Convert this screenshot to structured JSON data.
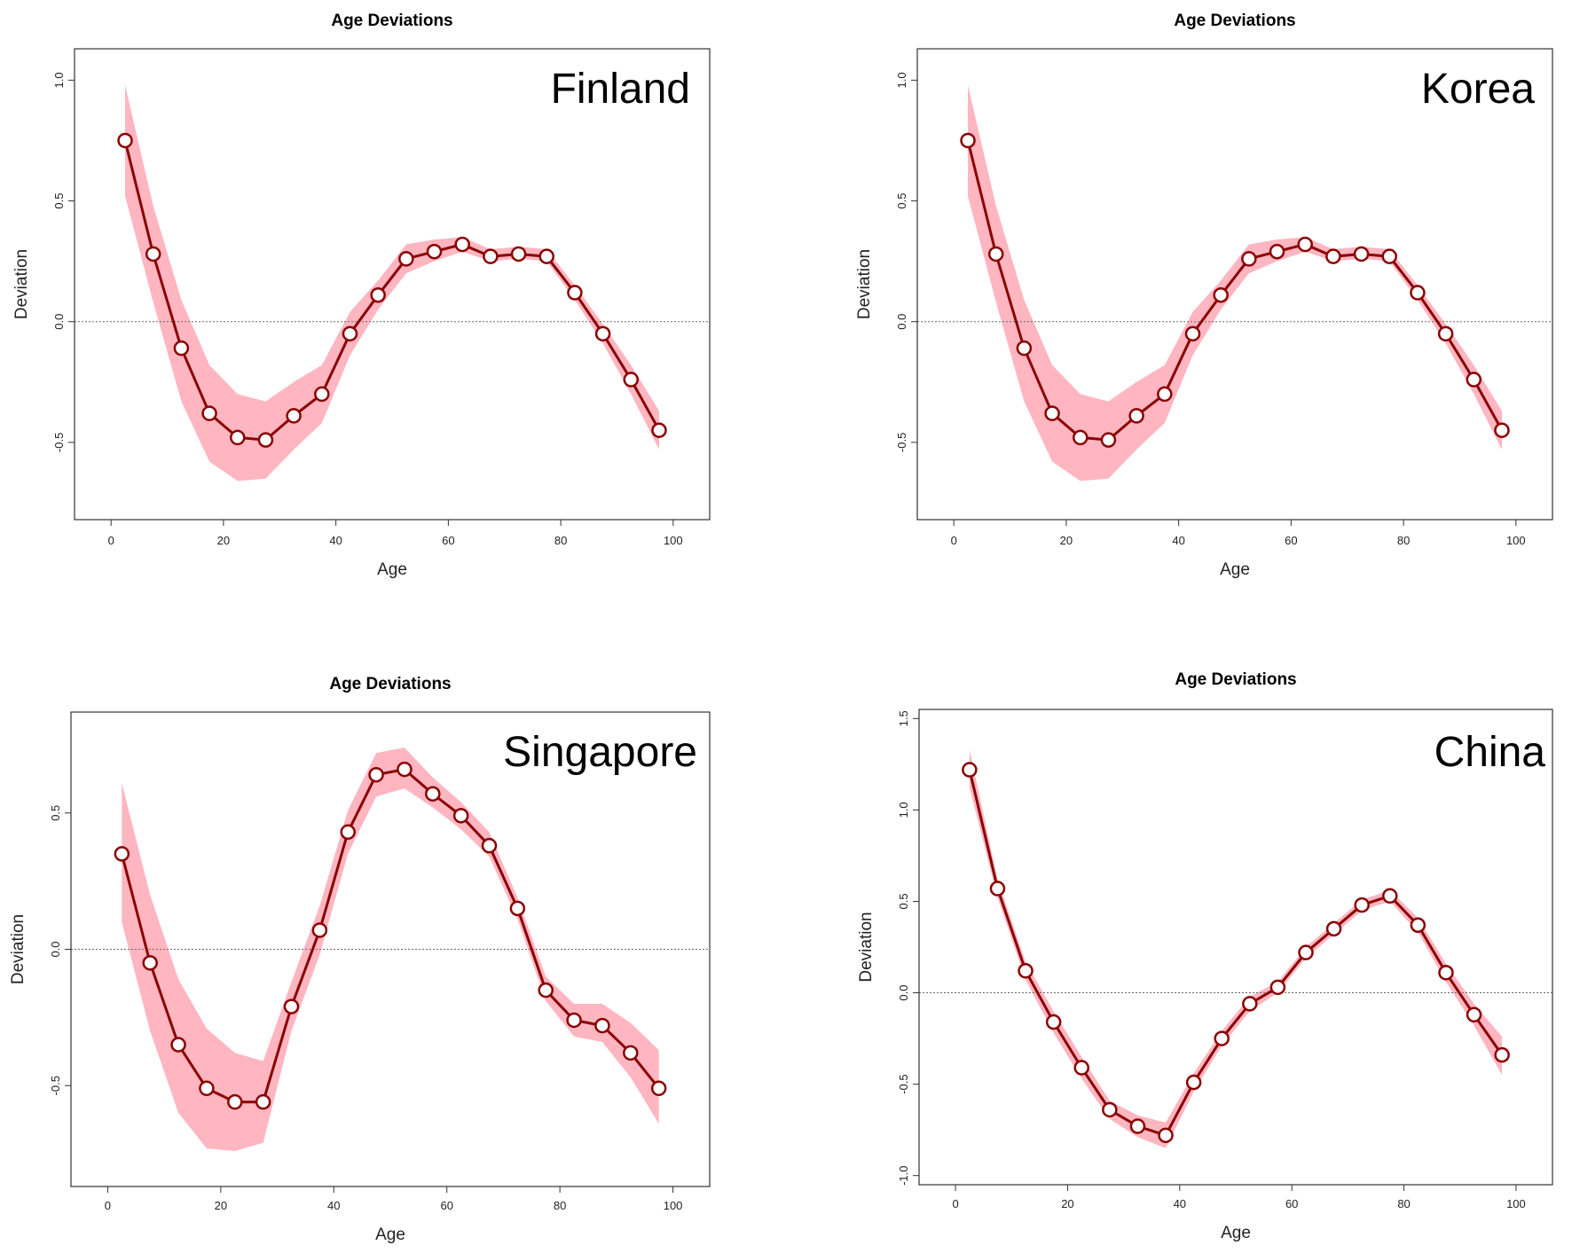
{
  "chart_data": [
    {
      "type": "line",
      "title": "Age Deviations",
      "annotation": "Finland",
      "xlabel": "Age",
      "ylabel": "Deviation",
      "xlim": [
        -6.5,
        106.5
      ],
      "ylim": [
        -0.82,
        1.13
      ],
      "xticks": [
        0,
        20,
        40,
        60,
        80,
        100
      ],
      "yticks": [
        -0.5,
        0.0,
        0.5,
        1.0
      ],
      "ytick_labels": [
        "-0.5",
        "0.0",
        "0.5",
        "1.0"
      ],
      "reference_line": 0,
      "x": [
        2.5,
        7.5,
        12.5,
        17.5,
        22.5,
        27.5,
        32.5,
        37.5,
        42.5,
        47.5,
        52.5,
        57.5,
        62.5,
        67.5,
        72.5,
        77.5,
        82.5,
        87.5,
        92.5,
        97.5
      ],
      "series": [
        {
          "values": [
            0.75,
            0.28,
            -0.11,
            -0.38,
            -0.48,
            -0.49,
            -0.39,
            -0.3,
            -0.05,
            0.11,
            0.26,
            0.29,
            0.32,
            0.27,
            0.28,
            0.27,
            0.12,
            -0.05,
            -0.24,
            -0.45
          ],
          "lower": [
            0.52,
            0.08,
            -0.33,
            -0.58,
            -0.66,
            -0.65,
            -0.53,
            -0.42,
            -0.14,
            0.05,
            0.2,
            0.25,
            0.29,
            0.25,
            0.26,
            0.25,
            0.09,
            -0.09,
            -0.3,
            -0.53
          ],
          "upper": [
            0.98,
            0.48,
            0.09,
            -0.18,
            -0.3,
            -0.33,
            -0.25,
            -0.18,
            0.04,
            0.17,
            0.32,
            0.34,
            0.35,
            0.3,
            0.31,
            0.3,
            0.15,
            -0.01,
            -0.18,
            -0.37
          ]
        }
      ],
      "colors": {
        "line": "#8b0000",
        "band": "#ffb6c1",
        "marker_fill": "#ffffff"
      }
    },
    {
      "type": "line",
      "title": "Age Deviations",
      "annotation": "Korea",
      "xlabel": "Age",
      "ylabel": "Deviation",
      "xlim": [
        -6.5,
        106.5
      ],
      "ylim": [
        -0.82,
        1.13
      ],
      "xticks": [
        0,
        20,
        40,
        60,
        80,
        100
      ],
      "yticks": [
        -0.5,
        0.0,
        0.5,
        1.0
      ],
      "ytick_labels": [
        "-0.5",
        "0.0",
        "0.5",
        "1.0"
      ],
      "reference_line": 0,
      "x": [
        2.5,
        7.5,
        12.5,
        17.5,
        22.5,
        27.5,
        32.5,
        37.5,
        42.5,
        47.5,
        52.5,
        57.5,
        62.5,
        67.5,
        72.5,
        77.5,
        82.5,
        87.5,
        92.5,
        97.5
      ],
      "series": [
        {
          "values": [
            0.75,
            0.28,
            -0.11,
            -0.38,
            -0.48,
            -0.49,
            -0.39,
            -0.3,
            -0.05,
            0.11,
            0.26,
            0.29,
            0.32,
            0.27,
            0.28,
            0.27,
            0.12,
            -0.05,
            -0.24,
            -0.45
          ],
          "lower": [
            0.52,
            0.08,
            -0.33,
            -0.58,
            -0.66,
            -0.65,
            -0.53,
            -0.42,
            -0.14,
            0.05,
            0.2,
            0.25,
            0.29,
            0.25,
            0.26,
            0.25,
            0.09,
            -0.09,
            -0.3,
            -0.53
          ],
          "upper": [
            0.98,
            0.48,
            0.09,
            -0.18,
            -0.3,
            -0.33,
            -0.25,
            -0.18,
            0.04,
            0.17,
            0.32,
            0.34,
            0.35,
            0.3,
            0.31,
            0.3,
            0.15,
            -0.01,
            -0.18,
            -0.37
          ]
        }
      ],
      "colors": {
        "line": "#8b0000",
        "band": "#ffb6c1",
        "marker_fill": "#ffffff"
      }
    },
    {
      "type": "line",
      "title": "Age Deviations",
      "annotation": "Singapore",
      "xlabel": "Age",
      "ylabel": "Deviation",
      "xlim": [
        -6.5,
        106.5
      ],
      "ylim": [
        -0.87,
        0.87
      ],
      "xticks": [
        0,
        20,
        40,
        60,
        80,
        100
      ],
      "yticks": [
        -0.5,
        0.0,
        0.5
      ],
      "ytick_labels": [
        "-0.5",
        "0.0",
        "0.5"
      ],
      "reference_line": 0,
      "x": [
        2.5,
        7.5,
        12.5,
        17.5,
        22.5,
        27.5,
        32.5,
        37.5,
        42.5,
        47.5,
        52.5,
        57.5,
        62.5,
        67.5,
        72.5,
        77.5,
        82.5,
        87.5,
        92.5,
        97.5
      ],
      "series": [
        {
          "values": [
            0.35,
            -0.05,
            -0.35,
            -0.51,
            -0.56,
            -0.56,
            -0.21,
            0.07,
            0.43,
            0.64,
            0.66,
            0.57,
            0.49,
            0.38,
            0.15,
            -0.15,
            -0.26,
            -0.28,
            -0.38,
            -0.51
          ],
          "lower": [
            0.1,
            -0.3,
            -0.6,
            -0.73,
            -0.74,
            -0.71,
            -0.3,
            -0.02,
            0.35,
            0.56,
            0.59,
            0.52,
            0.44,
            0.34,
            0.11,
            -0.19,
            -0.32,
            -0.34,
            -0.47,
            -0.64
          ],
          "upper": [
            0.61,
            0.2,
            -0.11,
            -0.29,
            -0.38,
            -0.41,
            -0.12,
            0.16,
            0.51,
            0.72,
            0.74,
            0.63,
            0.54,
            0.43,
            0.19,
            -0.1,
            -0.2,
            -0.2,
            -0.27,
            -0.37
          ]
        }
      ],
      "colors": {
        "line": "#8b0000",
        "band": "#ffb6c1",
        "marker_fill": "#ffffff"
      }
    },
    {
      "type": "line",
      "title": "Age Deviations",
      "annotation": "China",
      "xlabel": "Age",
      "ylabel": "Deviation",
      "xlim": [
        -6.5,
        106.5
      ],
      "ylim": [
        -1.05,
        1.55
      ],
      "xticks": [
        0,
        20,
        40,
        60,
        80,
        100
      ],
      "yticks": [
        -1.0,
        -0.5,
        0.0,
        0.5,
        1.0,
        1.5
      ],
      "ytick_labels": [
        "-1.0",
        "-0.5",
        "0.0",
        "0.5",
        "1.0",
        "1.5"
      ],
      "reference_line": 0,
      "x": [
        2.5,
        7.5,
        12.5,
        17.5,
        22.5,
        27.5,
        32.5,
        37.5,
        42.5,
        47.5,
        52.5,
        57.5,
        62.5,
        67.5,
        72.5,
        77.5,
        82.5,
        87.5,
        92.5,
        97.5
      ],
      "series": [
        {
          "values": [
            1.22,
            0.57,
            0.12,
            -0.16,
            -0.41,
            -0.64,
            -0.73,
            -0.78,
            -0.49,
            -0.25,
            -0.06,
            0.03,
            0.22,
            0.35,
            0.48,
            0.53,
            0.37,
            0.11,
            -0.12,
            -0.34
          ],
          "lower": [
            1.12,
            0.52,
            0.07,
            -0.22,
            -0.47,
            -0.69,
            -0.79,
            -0.85,
            -0.54,
            -0.29,
            -0.1,
            0.0,
            0.19,
            0.32,
            0.45,
            0.5,
            0.33,
            0.06,
            -0.18,
            -0.45
          ],
          "upper": [
            1.33,
            0.62,
            0.17,
            -0.1,
            -0.35,
            -0.59,
            -0.67,
            -0.71,
            -0.44,
            -0.21,
            -0.02,
            0.06,
            0.25,
            0.38,
            0.51,
            0.56,
            0.41,
            0.16,
            -0.06,
            -0.24
          ]
        }
      ],
      "colors": {
        "line": "#8b0000",
        "band": "#ffb6c1",
        "marker_fill": "#ffffff"
      }
    }
  ]
}
